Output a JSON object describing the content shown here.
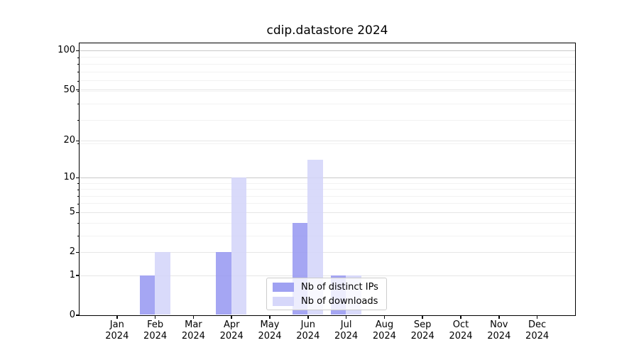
{
  "chart_data": {
    "type": "bar",
    "title": "cdip.datastore 2024",
    "categories": [
      "Jan",
      "Feb",
      "Mar",
      "Apr",
      "May",
      "Jun",
      "Jul",
      "Aug",
      "Sep",
      "Oct",
      "Nov",
      "Dec"
    ],
    "tick_year_line": "2024",
    "series": [
      {
        "name": "Nb of distinct IPs",
        "color": "#9597f1",
        "values": [
          0,
          1,
          0,
          2,
          0,
          4,
          1,
          0,
          0,
          0,
          0,
          0
        ]
      },
      {
        "name": "Nb of downloads",
        "color": "#d2d3f9",
        "values": [
          0,
          2,
          0,
          10,
          0,
          14,
          1,
          0,
          0,
          0,
          0,
          0
        ]
      }
    ],
    "xlabel": "",
    "ylabel": "",
    "yscale": "log1p",
    "ylim": [
      0,
      114
    ],
    "yticks_labeled": [
      0,
      1,
      2,
      5,
      10,
      20,
      50,
      100
    ],
    "yticks_decade": [
      10,
      100
    ],
    "yticks_minor": [
      3,
      4,
      6,
      7,
      8,
      9,
      19,
      29,
      39,
      49,
      59,
      69,
      79,
      89
    ],
    "grid": "horizontal",
    "legend_position": "lower center"
  },
  "colors": {
    "grid_decade": "#c9c9c9",
    "grid_labeled": "#e6e6e6",
    "grid_minor": "#f2f2f2",
    "axis": "#000000",
    "legend_border": "#cccccc"
  }
}
